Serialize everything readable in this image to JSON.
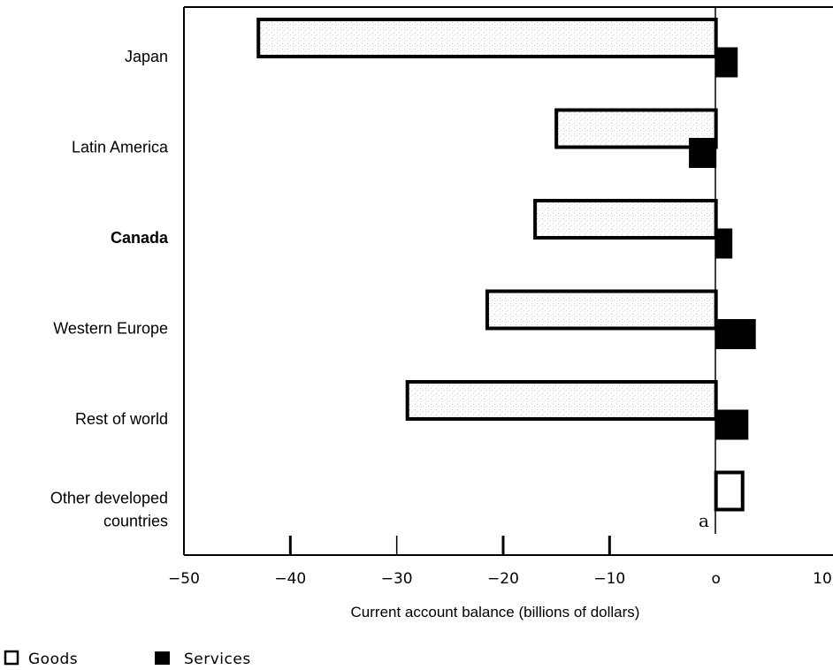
{
  "chart_data": {
    "type": "bar",
    "orientation": "horizontal",
    "categories": [
      "Japan",
      "Latin America",
      "Canada",
      "Western Europe",
      "Rest of world",
      "Other developed countries"
    ],
    "category_lines": [
      [
        "Japan"
      ],
      [
        "Latin  America"
      ],
      [
        "Canada"
      ],
      [
        "Western  Europe"
      ],
      [
        "Rest  of  world"
      ],
      [
        "Other  developed",
        "countries"
      ]
    ],
    "bold_category": "Canada",
    "series": [
      {
        "name": "Goods",
        "values": [
          -43,
          -15,
          -17,
          -21.5,
          -29,
          2.5
        ],
        "color": "#ffffff"
      },
      {
        "name": "Services",
        "values": [
          2,
          -2.5,
          1.5,
          3.7,
          3,
          null
        ],
        "color": "#000000"
      }
    ],
    "xlabel": "Current  account  balance  (billions  of  dollars)",
    "xlim": [
      -50,
      10
    ],
    "x_ticks": [
      -50,
      -40,
      -30,
      -20,
      -10,
      0,
      10
    ],
    "x_tick_labels": [
      "−50",
      "−40",
      "−30",
      "−20",
      "−10",
      "o",
      "10"
    ],
    "annotation": "a",
    "grid": false,
    "legend_position": "bottom-left"
  },
  "legend": {
    "goods_label": "Goods",
    "services_label": "Services"
  }
}
